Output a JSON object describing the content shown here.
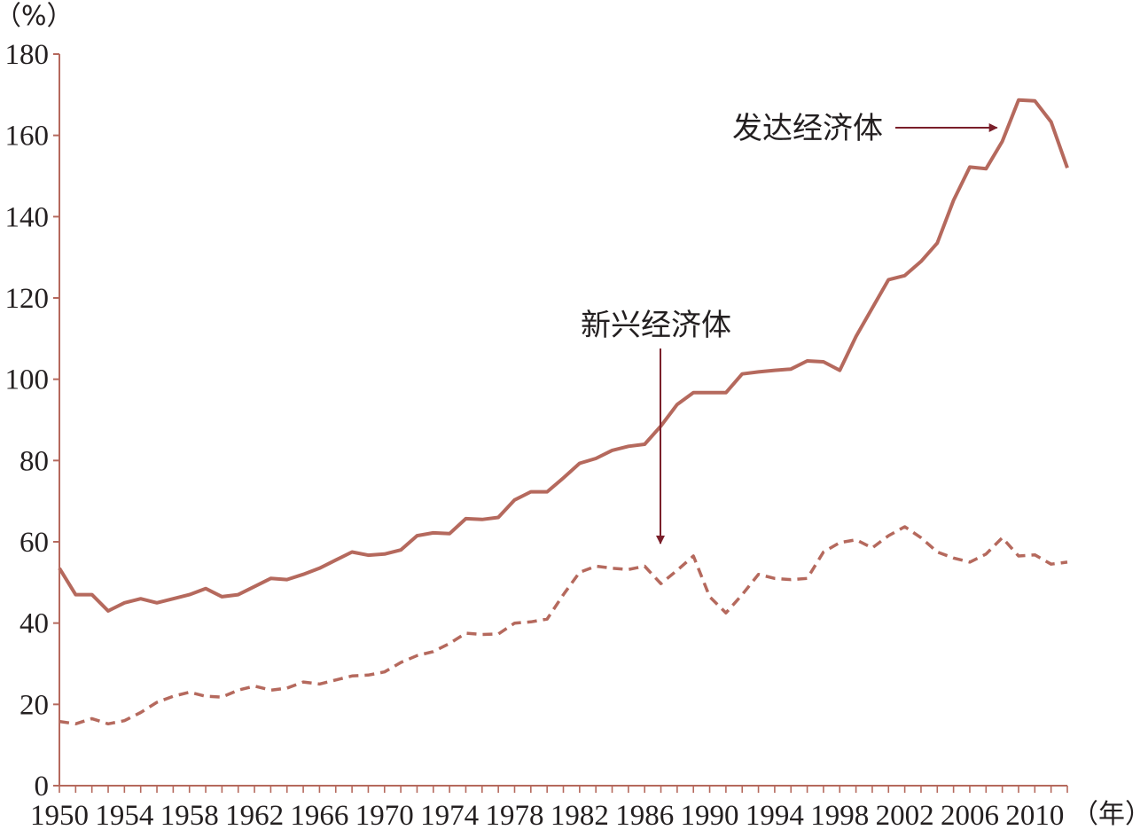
{
  "chart_data": {
    "type": "line",
    "title": "",
    "xlabel": "（年）",
    "ylabel": "（%）",
    "xlim": [
      1950,
      2012
    ],
    "ylim": [
      0,
      180
    ],
    "y_ticks": [
      0,
      20,
      40,
      60,
      80,
      100,
      120,
      140,
      160,
      180
    ],
    "x_tick_labels": [
      1950,
      1954,
      1958,
      1962,
      1966,
      1970,
      1974,
      1978,
      1982,
      1986,
      1990,
      1994,
      1998,
      2002,
      2006,
      2010
    ],
    "grid": false,
    "legend": "none",
    "colors": {
      "line": "#b5695d",
      "axis": "#b5695d",
      "arrow": "#7a1f2a",
      "text": "#231f20"
    },
    "x": [
      1950,
      1951,
      1952,
      1953,
      1954,
      1955,
      1956,
      1957,
      1958,
      1959,
      1960,
      1961,
      1962,
      1963,
      1964,
      1965,
      1966,
      1967,
      1968,
      1969,
      1970,
      1971,
      1972,
      1973,
      1974,
      1975,
      1976,
      1977,
      1978,
      1979,
      1980,
      1981,
      1982,
      1983,
      1984,
      1985,
      1986,
      1987,
      1988,
      1989,
      1990,
      1991,
      1992,
      1993,
      1994,
      1995,
      1996,
      1997,
      1998,
      1999,
      2000,
      2001,
      2002,
      2003,
      2004,
      2005,
      2006,
      2007,
      2008,
      2009,
      2010,
      2011,
      2012
    ],
    "series": [
      {
        "name": "发达经济体",
        "style": "solid",
        "values": [
          53.5,
          47,
          47,
          43,
          45,
          46,
          45,
          46,
          47,
          48.5,
          46.5,
          47,
          49,
          51,
          50.7,
          52,
          53.5,
          55.5,
          57.5,
          56.7,
          57,
          58,
          61.5,
          62.2,
          62,
          65.7,
          65.5,
          66,
          70.3,
          72.3,
          72.3,
          75.7,
          79.3,
          80.5,
          82.5,
          83.5,
          84,
          88.5,
          93.8,
          96.7,
          96.7,
          96.7,
          101.3,
          101.8,
          102.2,
          102.5,
          104.5,
          104.3,
          102.2,
          110.5,
          117.5,
          124.5,
          125.5,
          129,
          133.5,
          144,
          152.2,
          151.8,
          158.5,
          168.7,
          168.5,
          163.3,
          152
        ]
      },
      {
        "name": "新兴经济体",
        "style": "dashed",
        "values": [
          15.8,
          15.2,
          16.5,
          15.2,
          16,
          18,
          20.5,
          22,
          23,
          22,
          21.8,
          23.5,
          24.5,
          23.5,
          24,
          25.5,
          25,
          26,
          27,
          27.2,
          28,
          30.3,
          32,
          33,
          35,
          37.5,
          37.2,
          37.3,
          40,
          40.3,
          41,
          47,
          52.5,
          54,
          53.5,
          53.2,
          54,
          49.7,
          53,
          56.5,
          46.5,
          42.5,
          47,
          52,
          51,
          50.7,
          51,
          57.5,
          59.8,
          60.5,
          58.5,
          61.5,
          63.7,
          61,
          57.5,
          56,
          55,
          57,
          61,
          56.5,
          56.8,
          54.5,
          55
        ]
      }
    ],
    "annotations": [
      {
        "text": "发达经济体",
        "arrow_to_year": 2008,
        "arrow_to_value": 163
      },
      {
        "text": "新兴经济体",
        "arrow_to_year": 1986,
        "arrow_to_value": 60
      }
    ]
  }
}
